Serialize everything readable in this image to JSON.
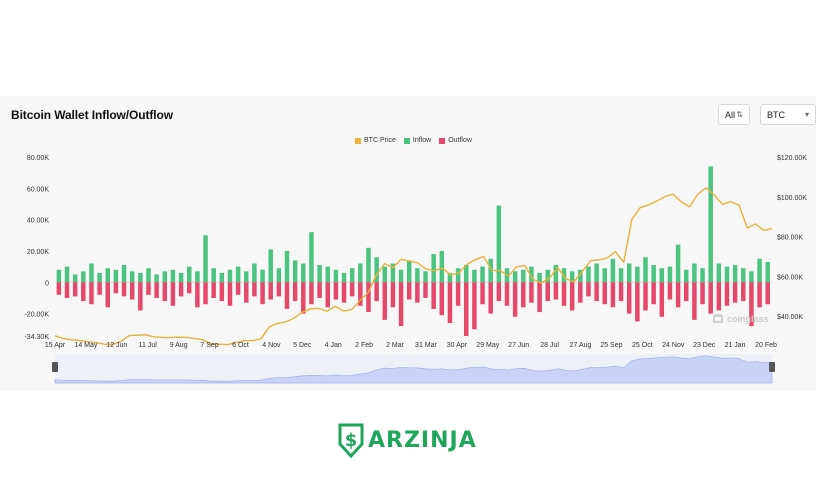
{
  "header": {
    "title": "Bitcoin Wallet Inflow/Outflow",
    "range_select": "All",
    "asset_select": "BTC"
  },
  "watermark": "coinglass",
  "brand": {
    "name": "ARZINJA"
  },
  "colors": {
    "price": "#e8b23a",
    "inflow": "#4cc37f",
    "outflow": "#e5486a",
    "brand": "#1fa65a",
    "navigator": "#c9d3f7"
  },
  "icons": {
    "watermark": "coinglass-logo-icon",
    "brand": "dollar-shield-icon",
    "select": "chevron-down-icon"
  },
  "chart_data": {
    "type": "bar",
    "legend": [
      "BTC Price",
      "Inflow",
      "Outflow"
    ],
    "legend_position": "top-center",
    "grid": false,
    "x_ticks": [
      "15 Apr",
      "14 May",
      "12 Jun",
      "11 Jul",
      "9 Aug",
      "7 Sep",
      "6 Oct",
      "4 Nov",
      "5 Dec",
      "4 Jan",
      "2 Feb",
      "2 Mar",
      "31 Mar",
      "30 Apr",
      "29 May",
      "27 Jun",
      "28 Jul",
      "27 Aug",
      "25 Sep",
      "25 Oct",
      "24 Nov",
      "23 Dec",
      "21 Jan",
      "20 Feb"
    ],
    "y_left_ticks": [
      "80.00K",
      "60.00K",
      "40.00K",
      "20.00K",
      "0",
      "-20.00K",
      "-34.30K"
    ],
    "y_right_ticks": [
      "$120.00K",
      "$100.00K",
      "$80.00K",
      "$60.00K",
      "$40.00K"
    ],
    "y_left_range": [
      -34300,
      80000
    ],
    "y_right_range": [
      30000,
      120000
    ],
    "price_series": {
      "name": "BTC Price",
      "values": [
        30100,
        28800,
        28100,
        27800,
        27100,
        26700,
        25900,
        25800,
        27300,
        30200,
        30400,
        30600,
        29600,
        29300,
        29200,
        29400,
        29300,
        28700,
        28000,
        25900,
        25900,
        25700,
        26700,
        27700,
        27700,
        28600,
        34600,
        36400,
        37100,
        39000,
        41900,
        43700,
        43900,
        42400,
        44900,
        42600,
        43200,
        47800,
        51800,
        60700,
        66300,
        64400,
        68600,
        67600,
        66800,
        63800,
        62800,
        64100,
        60800,
        61600,
        66100,
        68300,
        70000,
        63000,
        62900,
        60100,
        64800,
        65400,
        58500,
        56600,
        59200,
        64300,
        58700,
        57300,
        62600,
        67900,
        68200,
        69200,
        72400,
        67100,
        88700,
        94500,
        95900,
        97800,
        100100,
        101300,
        97400,
        94900,
        101300,
        104500,
        100800,
        96200,
        97600,
        95800,
        84300,
        86300,
        83100,
        84000
      ]
    },
    "inflow_series": {
      "name": "Inflow",
      "values": [
        8000,
        10000,
        5000,
        7000,
        12000,
        6000,
        9000,
        8000,
        11000,
        7000,
        6000,
        9000,
        5000,
        7000,
        8000,
        6000,
        10000,
        7000,
        30000,
        9000,
        6000,
        8000,
        10000,
        7000,
        12000,
        8000,
        21000,
        9000,
        20000,
        14000,
        12000,
        32000,
        11000,
        10000,
        8000,
        6000,
        9000,
        12000,
        22000,
        16000,
        10000,
        12000,
        8000,
        14000,
        9000,
        7000,
        18000,
        20000,
        6000,
        9000,
        11000,
        8000,
        10000,
        15000,
        49000,
        9000,
        7000,
        8000,
        10000,
        6000,
        8000,
        11000,
        9000,
        7000,
        8000,
        10000,
        12000,
        9000,
        15000,
        9000,
        12000,
        10000,
        16000,
        11000,
        9000,
        10000,
        24000,
        8000,
        12000,
        9000,
        74000,
        12000,
        10000,
        11000,
        9000,
        7000,
        15000,
        13000
      ]
    },
    "outflow_series": {
      "name": "Outflow",
      "values": [
        -8000,
        -10000,
        -9000,
        -12000,
        -14000,
        -8000,
        -16000,
        -7000,
        -9000,
        -11000,
        -18000,
        -8000,
        -10000,
        -12000,
        -15000,
        -9000,
        -7000,
        -16000,
        -14000,
        -10000,
        -12000,
        -15000,
        -8000,
        -13000,
        -9000,
        -14000,
        -11000,
        -9000,
        -17000,
        -12000,
        -20000,
        -14000,
        -10000,
        -16000,
        -11000,
        -13000,
        -9000,
        -15000,
        -19000,
        -12000,
        -24000,
        -16000,
        -28000,
        -11000,
        -13000,
        -10000,
        -17000,
        -21000,
        -26000,
        -15000,
        -34300,
        -30000,
        -14000,
        -20000,
        -12000,
        -15000,
        -22000,
        -16000,
        -13000,
        -19000,
        -12000,
        -11000,
        -15000,
        -18000,
        -13000,
        -9000,
        -12000,
        -14000,
        -16000,
        -12000,
        -20000,
        -25000,
        -18000,
        -14000,
        -22000,
        -11000,
        -16000,
        -12000,
        -24000,
        -14000,
        -20000,
        -18000,
        -15000,
        -13000,
        -12000,
        -28000,
        -16000,
        -14000
      ]
    },
    "navigator": "full-range"
  }
}
